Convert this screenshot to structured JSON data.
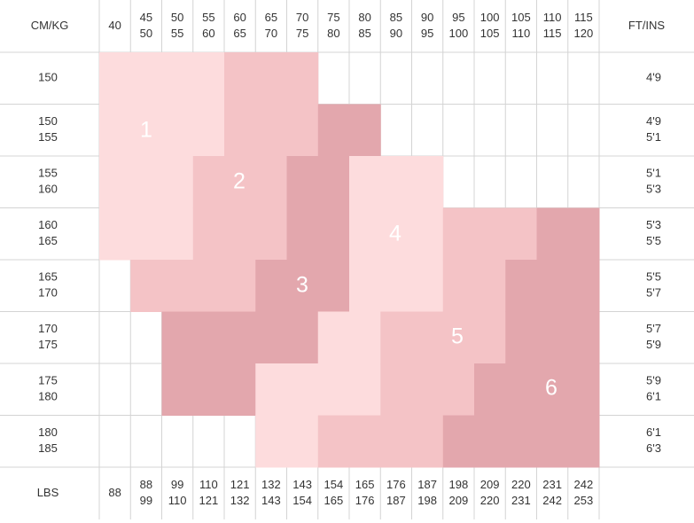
{
  "header": {
    "corner": "CM/KG",
    "right": "FT/INS",
    "kg": [
      [
        "40"
      ],
      [
        "45",
        "50"
      ],
      [
        "50",
        "55"
      ],
      [
        "55",
        "60"
      ],
      [
        "60",
        "65"
      ],
      [
        "65",
        "70"
      ],
      [
        "70",
        "75"
      ],
      [
        "75",
        "80"
      ],
      [
        "80",
        "85"
      ],
      [
        "85",
        "90"
      ],
      [
        "90",
        "95"
      ],
      [
        "95",
        "100"
      ],
      [
        "100",
        "105"
      ],
      [
        "105",
        "110"
      ],
      [
        "110",
        "115"
      ],
      [
        "115",
        "120"
      ]
    ]
  },
  "rows": [
    {
      "cm": [
        "150"
      ],
      "ft": [
        "4'9"
      ]
    },
    {
      "cm": [
        "150",
        "155"
      ],
      "ft": [
        "4'9",
        "5'1"
      ]
    },
    {
      "cm": [
        "155",
        "160"
      ],
      "ft": [
        "5'1",
        "5'3"
      ]
    },
    {
      "cm": [
        "160",
        "165"
      ],
      "ft": [
        "5'3",
        "5'5"
      ]
    },
    {
      "cm": [
        "165",
        "170"
      ],
      "ft": [
        "5'5",
        "5'7"
      ]
    },
    {
      "cm": [
        "170",
        "175"
      ],
      "ft": [
        "5'7",
        "5'9"
      ]
    },
    {
      "cm": [
        "175",
        "180"
      ],
      "ft": [
        "5'9",
        "6'1"
      ]
    },
    {
      "cm": [
        "180",
        "185"
      ],
      "ft": [
        "6'1",
        "6'3"
      ]
    }
  ],
  "footer": {
    "label": "LBS",
    "lbs": [
      [
        "88"
      ],
      [
        "88",
        "99"
      ],
      [
        "99",
        "110"
      ],
      [
        "110",
        "121"
      ],
      [
        "121",
        "132"
      ],
      [
        "132",
        "143"
      ],
      [
        "143",
        "154"
      ],
      [
        "154",
        "165"
      ],
      [
        "165",
        "176"
      ],
      [
        "176",
        "187"
      ],
      [
        "187",
        "198"
      ],
      [
        "198",
        "209"
      ],
      [
        "209",
        "220"
      ],
      [
        "220",
        "231"
      ],
      [
        "231",
        "242"
      ],
      [
        "242",
        "253"
      ]
    ]
  },
  "sizes": [
    "1",
    "2",
    "3",
    "4",
    "5",
    "6"
  ]
}
